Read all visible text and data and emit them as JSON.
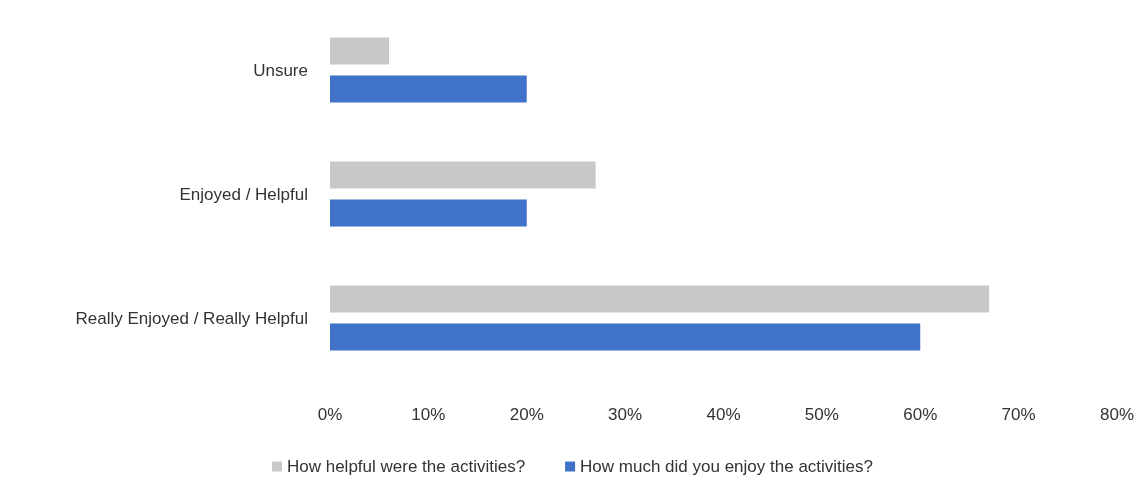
{
  "chart_data": {
    "type": "bar",
    "orientation": "horizontal",
    "categories": [
      "Unsure",
      "Enjoyed / Helpful",
      "Really Enjoyed / Really Helpful"
    ],
    "series": [
      {
        "name": "How helpful were the activities?",
        "color": "#c8c8c8",
        "values": [
          6,
          27,
          67
        ]
      },
      {
        "name": "How much did you enjoy the activities?",
        "color": "#3f72c8",
        "values": [
          20,
          20,
          60
        ]
      }
    ],
    "xlim": [
      0,
      80
    ],
    "xticks": [
      {
        "value": 0,
        "label": "0%"
      },
      {
        "value": 10,
        "label": "10%"
      },
      {
        "value": 20,
        "label": "20%"
      },
      {
        "value": 30,
        "label": "30%"
      },
      {
        "value": 40,
        "label": "40%"
      },
      {
        "value": 50,
        "label": "50%"
      },
      {
        "value": 60,
        "label": "60%"
      },
      {
        "value": 70,
        "label": "70%"
      },
      {
        "value": 80,
        "label": "80%"
      }
    ],
    "grid": false,
    "legend": "bottom"
  }
}
